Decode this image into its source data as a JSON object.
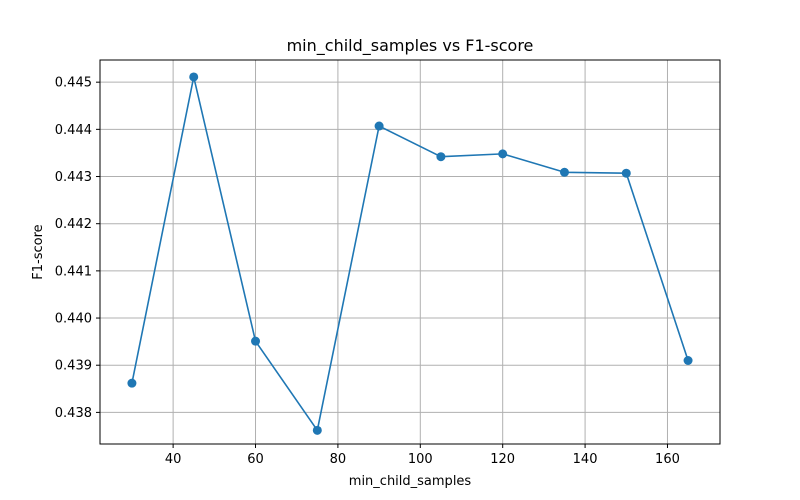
{
  "chart_data": {
    "type": "line",
    "title": "min_child_samples vs F1-score",
    "xlabel": "min_child_samples",
    "ylabel": "F1-score",
    "x": [
      30,
      45,
      60,
      75,
      90,
      105,
      120,
      135,
      150,
      165
    ],
    "series": [
      {
        "values": [
          0.43862,
          0.44511,
          0.43951,
          0.43762,
          0.44407,
          0.44342,
          0.44348,
          0.44309,
          0.44307,
          0.4391
        ]
      }
    ],
    "xlim": [
      22.25,
      172.75
    ],
    "ylim": [
      0.43733,
      0.44547
    ],
    "xticks": [
      40,
      60,
      80,
      100,
      120,
      140,
      160
    ],
    "yticks": [
      0.438,
      0.439,
      0.44,
      0.441,
      0.442,
      0.443,
      0.444,
      0.445
    ],
    "xtick_labels": [
      "40",
      "60",
      "80",
      "100",
      "120",
      "140",
      "160"
    ],
    "ytick_labels": [
      "0.438",
      "0.439",
      "0.440",
      "0.441",
      "0.442",
      "0.443",
      "0.444",
      "0.445"
    ],
    "grid": true,
    "line_color": "#1f77b4",
    "marker": "circle"
  }
}
